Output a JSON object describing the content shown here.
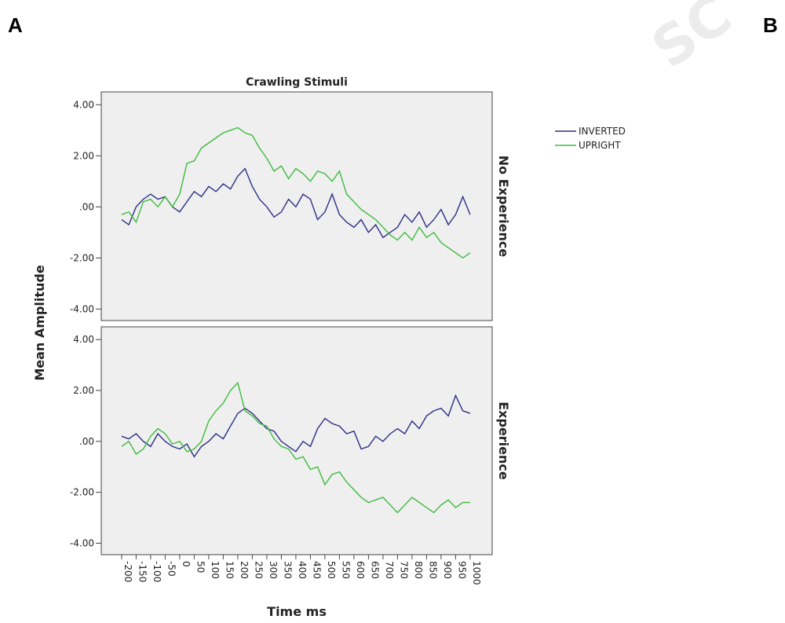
{
  "panel_labels": [
    "A",
    "B"
  ],
  "watermark": "SC",
  "chart_data": {
    "type": "line",
    "title": "Crawling Stimuli",
    "x_label": "Time ms",
    "y_label": "Mean Amplitude",
    "legend": "right",
    "series": [
      {
        "name": "INVERTED",
        "color": "#2e2e86"
      },
      {
        "name": "UPRIGHT",
        "color": "#3dbb3d"
      }
    ],
    "x": [
      -200,
      -175,
      -150,
      -125,
      -100,
      -75,
      -50,
      -25,
      0,
      25,
      50,
      75,
      100,
      125,
      150,
      175,
      200,
      225,
      250,
      275,
      300,
      325,
      350,
      375,
      400,
      425,
      450,
      475,
      500,
      525,
      550,
      575,
      600,
      625,
      650,
      675,
      700,
      725,
      750,
      775,
      800,
      825,
      850,
      875,
      900,
      925,
      950,
      975,
      1000
    ],
    "xlim": [
      -270,
      1076
    ],
    "xticks": [
      -200,
      -150,
      -100,
      -50,
      0,
      50,
      100,
      150,
      200,
      250,
      300,
      350,
      400,
      450,
      500,
      550,
      600,
      650,
      700,
      750,
      800,
      850,
      900,
      950,
      1000
    ],
    "ylim": [
      -4.45,
      4.5
    ],
    "yticks": [
      {
        "value": 4,
        "label": "4.00"
      },
      {
        "value": 2,
        "label": "2.00"
      },
      {
        "value": 0,
        "label": ".00"
      },
      {
        "value": -2,
        "label": "-2.00"
      },
      {
        "value": -4,
        "label": "-4.00"
      }
    ],
    "panels": [
      {
        "label": "No Experience",
        "values": [
          [
            -0.5,
            -0.7,
            0.0,
            0.3,
            0.5,
            0.3,
            0.4,
            0.0,
            -0.2,
            0.2,
            0.6,
            0.4,
            0.8,
            0.6,
            0.9,
            0.7,
            1.2,
            1.5,
            0.8,
            0.3,
            0.0,
            -0.4,
            -0.2,
            0.3,
            0.0,
            0.5,
            0.3,
            -0.5,
            -0.2,
            0.5,
            -0.3,
            -0.6,
            -0.8,
            -0.5,
            -1.0,
            -0.7,
            -1.2,
            -1.0,
            -0.8,
            -0.3,
            -0.6,
            -0.2,
            -0.8,
            -0.5,
            -0.1,
            -0.7,
            -0.3,
            0.4,
            -0.3
          ],
          [
            -0.3,
            -0.2,
            -0.6,
            0.2,
            0.3,
            0.0,
            0.4,
            0.0,
            0.5,
            1.7,
            1.8,
            2.3,
            2.5,
            2.7,
            2.9,
            3.0,
            3.1,
            2.9,
            2.8,
            2.3,
            1.9,
            1.4,
            1.6,
            1.1,
            1.5,
            1.3,
            1.0,
            1.4,
            1.3,
            1.0,
            1.4,
            0.5,
            0.2,
            -0.1,
            -0.3,
            -0.5,
            -0.8,
            -1.1,
            -1.3,
            -1.0,
            -1.3,
            -0.8,
            -1.2,
            -1.0,
            -1.4,
            -1.6,
            -1.8,
            -2.0,
            -1.8
          ]
        ]
      },
      {
        "label": "Experience",
        "values": [
          [
            0.2,
            0.1,
            0.3,
            0.0,
            -0.2,
            0.3,
            0.0,
            -0.2,
            -0.3,
            -0.1,
            -0.6,
            -0.2,
            0.0,
            0.3,
            0.1,
            0.6,
            1.1,
            1.3,
            1.1,
            0.8,
            0.5,
            0.4,
            0.0,
            -0.2,
            -0.4,
            0.0,
            -0.2,
            0.5,
            0.9,
            0.7,
            0.6,
            0.3,
            0.4,
            -0.3,
            -0.2,
            0.2,
            0.0,
            0.3,
            0.5,
            0.3,
            0.8,
            0.5,
            1.0,
            1.2,
            1.3,
            1.0,
            1.8,
            1.2,
            1.1
          ],
          [
            -0.2,
            0.0,
            -0.5,
            -0.3,
            0.2,
            0.5,
            0.3,
            -0.1,
            0.0,
            -0.4,
            -0.3,
            0.0,
            0.8,
            1.2,
            1.5,
            2.0,
            2.3,
            1.2,
            1.0,
            0.7,
            0.6,
            0.1,
            -0.2,
            -0.3,
            -0.7,
            -0.6,
            -1.1,
            -1.0,
            -1.7,
            -1.3,
            -1.2,
            -1.6,
            -1.9,
            -2.2,
            -2.4,
            -2.3,
            -2.2,
            -2.5,
            -2.8,
            -2.5,
            -2.2,
            -2.4,
            -2.6,
            -2.8,
            -2.5,
            -2.3,
            -2.6,
            -2.4,
            -2.4
          ]
        ]
      }
    ]
  }
}
